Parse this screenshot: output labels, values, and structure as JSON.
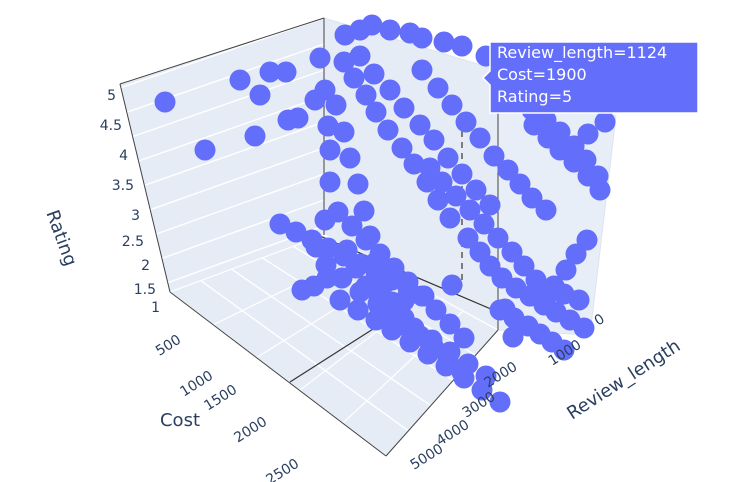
{
  "chart_data": {
    "type": "scatter3d",
    "title": "",
    "marker_color": "#636efa",
    "axes": {
      "x": {
        "label": "Review_length",
        "ticks": [
          "0",
          "1000",
          "2000",
          "3000",
          "4000",
          "5000"
        ]
      },
      "y": {
        "label": "Cost",
        "ticks": [
          "500",
          "1000",
          "1500",
          "2000",
          "2500"
        ]
      },
      "z": {
        "label": "Rating",
        "ticks": [
          "1",
          "1.5",
          "2",
          "2.5",
          "3",
          "3.5",
          "4",
          "4.5",
          "5"
        ]
      }
    },
    "tooltip": {
      "lines": [
        "Review_length=1124",
        "Cost=1900",
        "Rating=5"
      ]
    }
  }
}
